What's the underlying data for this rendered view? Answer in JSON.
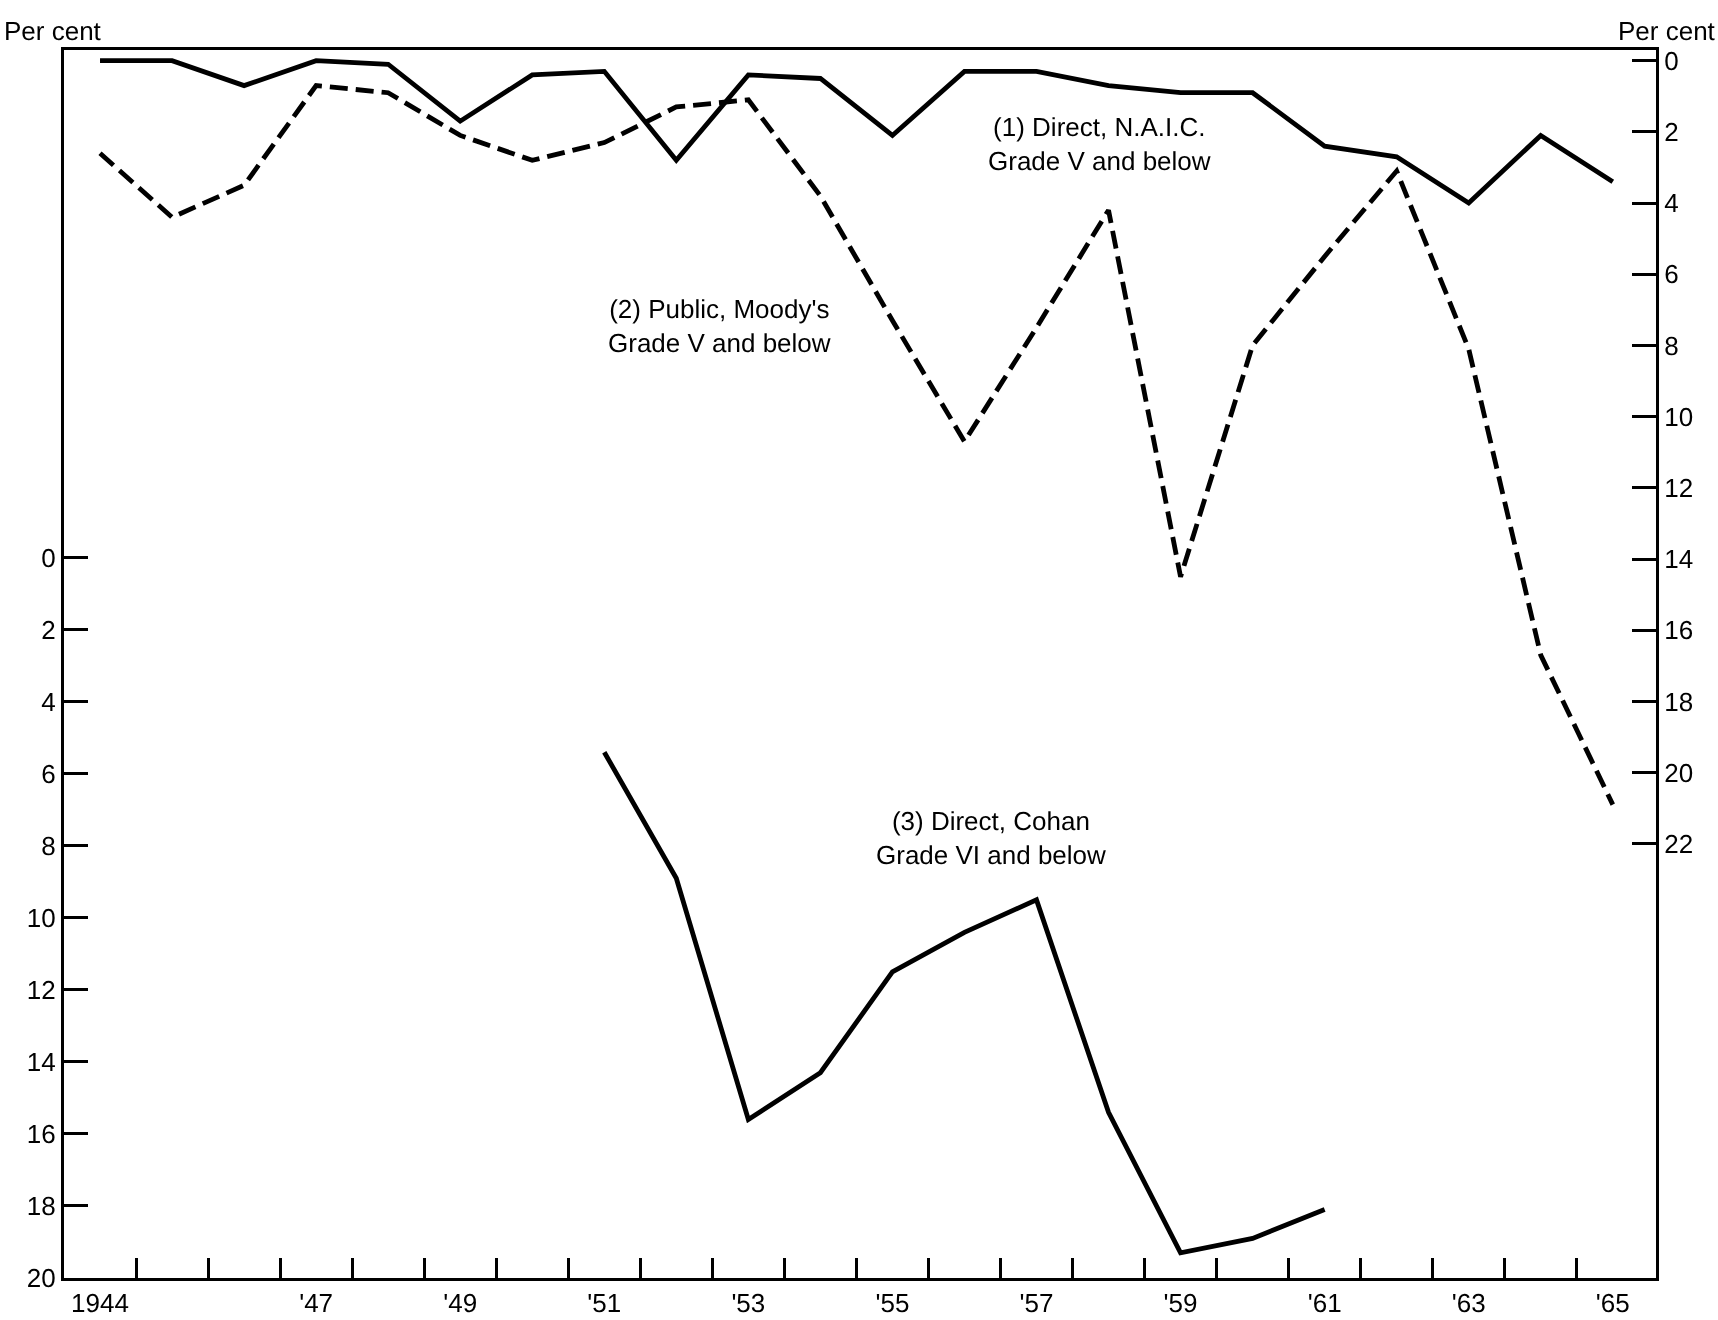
{
  "chart_data": {
    "type": "line",
    "ylabel": "Per cent",
    "y2label": "Per cent",
    "x": [
      1944,
      1945,
      1946,
      1947,
      1948,
      1949,
      1950,
      1951,
      1952,
      1953,
      1954,
      1955,
      1956,
      1957,
      1958,
      1959,
      1960,
      1961,
      1962,
      1963,
      1964,
      1965
    ],
    "xlim": [
      1943.5,
      1965.6
    ],
    "xticks": [
      {
        "value": 1944,
        "label": "1944"
      },
      {
        "value": 1947,
        "label": "'47"
      },
      {
        "value": 1949,
        "label": "'49"
      },
      {
        "value": 1951,
        "label": "'51"
      },
      {
        "value": 1953,
        "label": "'53"
      },
      {
        "value": 1955,
        "label": "'55"
      },
      {
        "value": 1957,
        "label": "'57"
      },
      {
        "value": 1959,
        "label": "'59"
      },
      {
        "value": 1961,
        "label": "'61"
      },
      {
        "value": 1963,
        "label": "'63"
      },
      {
        "value": 1965,
        "label": "'65"
      },
      {
        "value": 1944.5,
        "label": null
      },
      {
        "value": 1945.5,
        "label": null
      },
      {
        "value": 1946.5,
        "label": null
      },
      {
        "value": 1947.5,
        "label": null
      },
      {
        "value": 1948.5,
        "label": null
      },
      {
        "value": 1949.5,
        "label": null
      },
      {
        "value": 1950.5,
        "label": null
      },
      {
        "value": 1951.5,
        "label": null
      },
      {
        "value": 1952.5,
        "label": null
      },
      {
        "value": 1953.5,
        "label": null
      },
      {
        "value": 1954.5,
        "label": null
      },
      {
        "value": 1955.5,
        "label": null
      },
      {
        "value": 1956.5,
        "label": null
      },
      {
        "value": 1957.5,
        "label": null
      },
      {
        "value": 1958.5,
        "label": null
      },
      {
        "value": 1959.5,
        "label": null
      },
      {
        "value": 1960.5,
        "label": null
      },
      {
        "value": 1961.5,
        "label": null
      },
      {
        "value": 1962.5,
        "label": null
      },
      {
        "value": 1963.5,
        "label": null
      },
      {
        "value": 1964.5,
        "label": null
      }
    ],
    "ylim": [
      20,
      -14.1
    ],
    "yticks": [
      0,
      2,
      4,
      6,
      8,
      10,
      12,
      14,
      16,
      18,
      20
    ],
    "y2lim": [
      34.2,
      -0.3
    ],
    "y2ticks": [
      0,
      2,
      4,
      6,
      8,
      10,
      12,
      14,
      16,
      18,
      20,
      22
    ],
    "grid": false,
    "legend": false,
    "marker": "none",
    "series": [
      {
        "name": "(1) Direct, N.A.I.C.\nGrade V and below",
        "color": "#000000",
        "axis": "y2",
        "line_style": "solid",
        "values": [
          0,
          0,
          0.7,
          0,
          0.1,
          1.7,
          0.4,
          0.3,
          2.8,
          0.4,
          0.5,
          2.1,
          0.3,
          0.3,
          0.7,
          0.9,
          0.9,
          2.4,
          2.7,
          4.0,
          2.1,
          3.4
        ]
      },
      {
        "name": "(2) Public, Moody's\nGrade V and below",
        "color": "#000000",
        "axis": "y2",
        "line_style": "dashed",
        "values": [
          2.6,
          4.4,
          3.5,
          0.7,
          0.9,
          2.1,
          2.8,
          2.3,
          1.3,
          1.1,
          3.8,
          7.3,
          10.7,
          7.5,
          4.2,
          14.5,
          8.0,
          5.5,
          3.1,
          8.1,
          16.7,
          20.9
        ]
      },
      {
        "name": "(3) Direct, Cohan\nGrade VI and below",
        "color": "#000000",
        "axis": "y",
        "line_style": "solid",
        "values": [
          null,
          null,
          null,
          null,
          null,
          null,
          null,
          5.4,
          8.9,
          15.6,
          14.3,
          11.5,
          10.4,
          9.5,
          15.4,
          19.3,
          18.9,
          18.1,
          null,
          null,
          null,
          null
        ]
      }
    ]
  }
}
